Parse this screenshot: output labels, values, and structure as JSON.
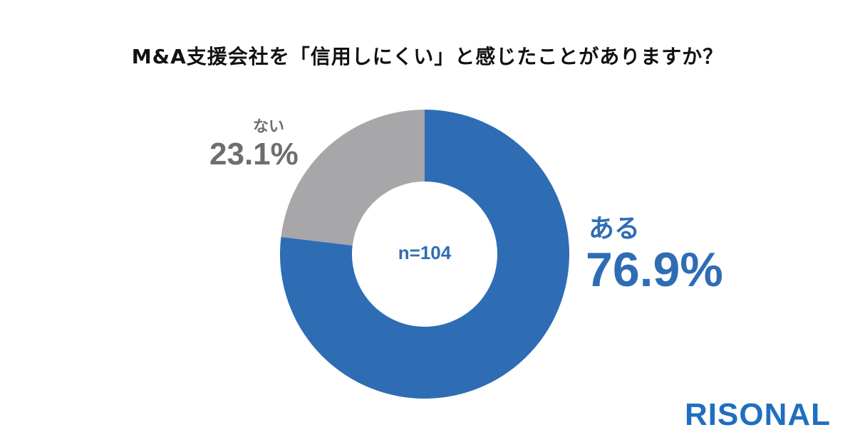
{
  "title": "M&A支援会社を「信用しにくい」と感じたことがありますか？",
  "logo_text": "RISONAL",
  "colors": {
    "yes": "#2e6db4",
    "no": "#a7a6a9",
    "text_gray": "#6d6e71"
  },
  "chart_data": {
    "type": "pie",
    "title": "M&A支援会社を「信用しにくい」と感じたことがありますか？",
    "center_label": "n=104",
    "slices": [
      {
        "name": "ある",
        "value": 76.9,
        "label": "76.9%",
        "color": "#2e6db4"
      },
      {
        "name": "ない",
        "value": 23.1,
        "label": "23.1%",
        "color": "#a7a6a9"
      }
    ]
  }
}
